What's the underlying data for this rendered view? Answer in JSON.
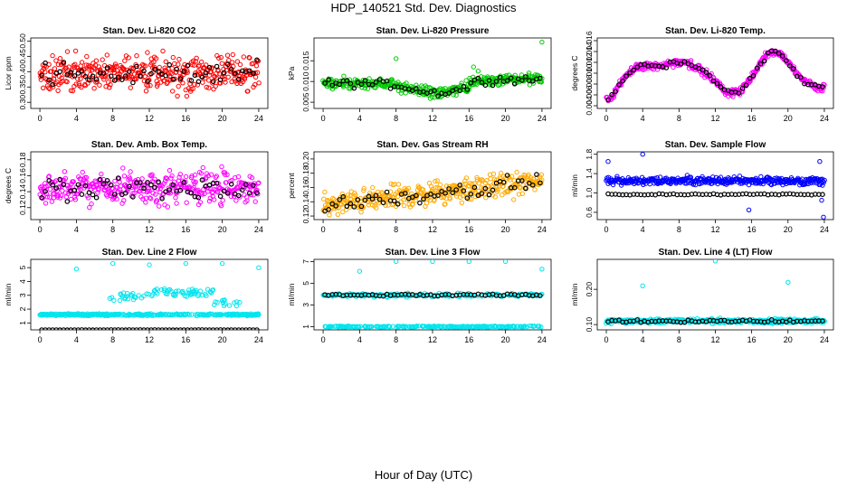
{
  "title": "HDP_140521  Std. Dev. Diagnostics",
  "x_axis_title": "Hour of Day (UTC)",
  "chart_data": [
    {
      "type": "scatter",
      "title": "Stan. Dev. Li-820 CO2",
      "ylabel": "Licor ppm",
      "color": "#ff0000",
      "xlim": [
        -1,
        25
      ],
      "ylim": [
        0.28,
        0.51
      ],
      "yticks": [
        0.3,
        0.35,
        0.4,
        0.45,
        0.5
      ],
      "ytick_labels": [
        "0.30",
        "0.35",
        "0.40",
        "0.45",
        "0.50"
      ],
      "xticks": [
        0,
        4,
        8,
        12,
        16,
        20,
        24
      ],
      "base": 0.395,
      "spread": 0.085,
      "trend": "flat",
      "black_mode": "mixed"
    },
    {
      "type": "scatter",
      "title": "Stan. Dev. Li-820 Pressure",
      "ylabel": "kPa",
      "color": "#00cc00",
      "xlim": [
        -1,
        25
      ],
      "ylim": [
        0.0035,
        0.0205
      ],
      "yticks": [
        0.005,
        0.01,
        0.015
      ],
      "ytick_labels": [
        "0.005",
        "0.010",
        "0.015"
      ],
      "xticks": [
        0,
        4,
        8,
        12,
        16,
        20,
        24
      ],
      "base": 0.0095,
      "spread": 0.002,
      "trend": "pressure",
      "black_mode": "mixed",
      "outliers": [
        [
          8,
          0.0155
        ],
        [
          24,
          0.0195
        ],
        [
          16.5,
          0.0135
        ],
        [
          17,
          0.0125
        ]
      ]
    },
    {
      "type": "scatter",
      "title": "Stan. Dev. Li-820 Temp.",
      "ylabel": "degrees C",
      "color": "#ff00ff",
      "xlim": [
        -1,
        25
      ],
      "ylim": [
        0.0035,
        0.0165
      ],
      "yticks": [
        0.004,
        0.006,
        0.008,
        0.01,
        0.012,
        0.014,
        0.016
      ],
      "ytick_labels": [
        "0.004",
        "0.006",
        "0.008",
        "0.010",
        "0.012",
        "0.014",
        "0.016"
      ],
      "xticks": [
        0,
        4,
        8,
        12,
        16,
        20,
        24
      ],
      "base": 0.01,
      "spread": 0.001,
      "trend": "temp",
      "black_mode": "mixed"
    },
    {
      "type": "scatter",
      "title": "Stan. Dev. Amb. Box Temp.",
      "ylabel": "degrees C",
      "color": "#ff00ff",
      "xlim": [
        -1,
        25
      ],
      "ylim": [
        0.105,
        0.19
      ],
      "yticks": [
        0.12,
        0.14,
        0.16,
        0.18
      ],
      "ytick_labels": [
        "0.12",
        "0.14",
        "0.16",
        "0.18"
      ],
      "xticks": [
        0,
        4,
        8,
        12,
        16,
        20,
        24
      ],
      "base": 0.145,
      "spread": 0.03,
      "trend": "flat",
      "black_mode": "mixed"
    },
    {
      "type": "scatter",
      "title": "Stan. Dev. Gas Stream RH",
      "ylabel": "percent",
      "color": "#ffaa00",
      "xlim": [
        -1,
        25
      ],
      "ylim": [
        0.115,
        0.21
      ],
      "yticks": [
        0.12,
        0.14,
        0.16,
        0.18,
        0.2
      ],
      "ytick_labels": [
        "0.12",
        "0.14",
        "0.16",
        "0.18",
        "0.20"
      ],
      "xticks": [
        0,
        4,
        8,
        12,
        16,
        20,
        24
      ],
      "base": 0.152,
      "spread": 0.024,
      "trend": "rh",
      "black_mode": "mixed"
    },
    {
      "type": "scatter",
      "title": "Stan. Dev. Sample Flow",
      "ylabel": "ml/min",
      "color": "#0000ff",
      "xlim": [
        -1,
        25
      ],
      "ylim": [
        0.45,
        1.85
      ],
      "yticks": [
        0.6,
        1.0,
        1.4,
        1.8
      ],
      "ytick_labels": [
        "0.6",
        "1.0",
        "1.4",
        "1.8"
      ],
      "xticks": [
        0,
        4,
        8,
        12,
        16,
        20,
        24
      ],
      "base": 1.25,
      "spread": 0.12,
      "trend": "flat",
      "black_mode": "low",
      "black_level": 0.97,
      "outliers": [
        [
          4,
          1.8
        ],
        [
          0.2,
          1.65
        ],
        [
          15.7,
          0.65
        ],
        [
          23.5,
          1.65
        ],
        [
          23.9,
          0.5
        ],
        [
          23.7,
          0.85
        ]
      ]
    },
    {
      "type": "scatter",
      "title": "Stan. Dev. Line 2 Flow",
      "ylabel": "ml/min",
      "color": "#00e5ee",
      "xlim": [
        -1,
        25
      ],
      "ylim": [
        0.5,
        5.6
      ],
      "yticks": [
        1,
        2,
        3,
        4,
        5
      ],
      "ytick_labels": [
        "1",
        "2",
        "3",
        "4",
        "5"
      ],
      "xticks": [
        0,
        4,
        8,
        12,
        16,
        20,
        24
      ],
      "base": 1.6,
      "spread": 0.1,
      "trend": "line2",
      "black_mode": "low",
      "black_level": 0.5,
      "outliers": [
        [
          4,
          4.9
        ],
        [
          8,
          5.3
        ],
        [
          12,
          5.2
        ],
        [
          16,
          5.3
        ],
        [
          20,
          5.3
        ],
        [
          24,
          5.0
        ]
      ]
    },
    {
      "type": "scatter",
      "title": "Stan. Dev. Line 3 Flow",
      "ylabel": "ml/min",
      "color": "#00e5ee",
      "xlim": [
        -1,
        25
      ],
      "ylim": [
        0.7,
        7.2
      ],
      "yticks": [
        1,
        3,
        5,
        7
      ],
      "ytick_labels": [
        "1",
        "3",
        "5",
        "7"
      ],
      "xticks": [
        0,
        4,
        8,
        12,
        16,
        20,
        24
      ],
      "base": 3.9,
      "spread": 0.25,
      "trend": "line3",
      "black_mode": "mixed",
      "outliers": [
        [
          4,
          6.1
        ],
        [
          8,
          7.0
        ],
        [
          12,
          7.0
        ],
        [
          16,
          7.0
        ],
        [
          20,
          7.0
        ],
        [
          24,
          6.3
        ]
      ]
    },
    {
      "type": "scatter",
      "title": "Stan. Dev. Line 4 (LT) Flow",
      "ylabel": "ml/min",
      "color": "#00e5ee",
      "xlim": [
        -1,
        25
      ],
      "ylim": [
        0.085,
        0.285
      ],
      "yticks": [
        0.1,
        0.2
      ],
      "ytick_labels": [
        "0.10",
        "0.20"
      ],
      "xticks": [
        0,
        4,
        8,
        12,
        16,
        20,
        24
      ],
      "base": 0.11,
      "spread": 0.009,
      "trend": "flat",
      "black_mode": "mixed",
      "outliers": [
        [
          4,
          0.21
        ],
        [
          12,
          0.28
        ],
        [
          20,
          0.22
        ]
      ]
    }
  ]
}
